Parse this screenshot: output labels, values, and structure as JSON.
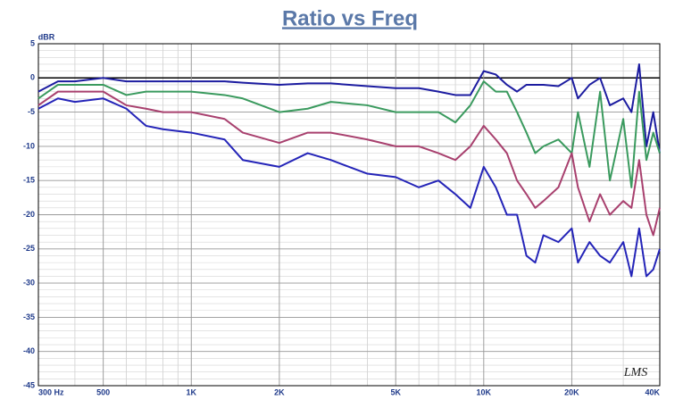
{
  "chart_data": {
    "type": "line",
    "title": "Ratio vs Freq",
    "y_label": "dBR",
    "logo": "LMS",
    "xscale": "log",
    "grid": true,
    "x": [
      300,
      350,
      400,
      500,
      600,
      700,
      800,
      1000,
      1300,
      1500,
      2000,
      2500,
      3000,
      4000,
      5000,
      6000,
      7000,
      8000,
      9000,
      10000,
      11000,
      12000,
      13000,
      14000,
      15000,
      16000,
      18000,
      20000,
      21000,
      23000,
      25000,
      27000,
      30000,
      32000,
      34000,
      36000,
      38000,
      40000
    ],
    "series": [
      {
        "color": "#1c1ca0",
        "values": [
          -2,
          -0.5,
          -0.5,
          0,
          -0.5,
          -0.5,
          -0.5,
          -0.5,
          -0.5,
          -0.7,
          -1,
          -0.8,
          -0.8,
          -1.2,
          -1.5,
          -1.5,
          -2,
          -2.5,
          -2.5,
          1,
          0.5,
          -1,
          -2,
          -1,
          -1,
          -1,
          -1.2,
          0,
          -3,
          -1,
          0,
          -4,
          -3,
          -5,
          2,
          -10,
          -5,
          -11
        ]
      },
      {
        "color": "#3a9a5e",
        "values": [
          -3,
          -1,
          -1,
          -1,
          -2.5,
          -2,
          -2,
          -2,
          -2.5,
          -3,
          -5,
          -4.5,
          -3.5,
          -4,
          -5,
          -5,
          -5,
          -6.5,
          -4,
          -0.5,
          -2,
          -2,
          -5,
          -8,
          -11,
          -10,
          -9,
          -11,
          -5,
          -13,
          -2,
          -15,
          -6,
          -16,
          -2,
          -12,
          -8,
          -11
        ]
      },
      {
        "color": "#a8406e",
        "values": [
          -4,
          -2,
          -2,
          -2,
          -4,
          -4.5,
          -5,
          -5,
          -6,
          -8,
          -9.5,
          -8,
          -8,
          -9,
          -10,
          -10,
          -11,
          -12,
          -10,
          -7,
          -9,
          -11,
          -15,
          -17,
          -19,
          -18,
          -16,
          -11,
          -16,
          -21,
          -17,
          -20,
          -18,
          -19,
          -12,
          -20,
          -23,
          -19
        ]
      },
      {
        "color": "#2424b8",
        "values": [
          -4.5,
          -3,
          -3.5,
          -3,
          -4.5,
          -7,
          -7.5,
          -8,
          -9,
          -12,
          -13,
          -11,
          -12,
          -14,
          -14.5,
          -16,
          -15,
          -17,
          -19,
          -13,
          -16,
          -20,
          -20,
          -26,
          -27,
          -23,
          -24,
          -22,
          -27,
          -24,
          -26,
          -27,
          -24,
          -29,
          -22,
          -29,
          -28,
          -25
        ]
      }
    ],
    "xlim": [
      300,
      40000
    ],
    "xticks": [
      {
        "value": 300,
        "label": "300  Hz"
      },
      500,
      {
        "value": 1000,
        "label": "1K"
      },
      {
        "value": 2000,
        "label": "2K"
      },
      {
        "value": 5000,
        "label": "5K"
      },
      {
        "value": 10000,
        "label": "10K"
      },
      {
        "value": 20000,
        "label": "20K"
      },
      {
        "value": 40000,
        "label": "40K"
      }
    ],
    "ylim": [
      -45,
      5
    ],
    "yticks": [
      5,
      0,
      -5,
      -10,
      -15,
      -20,
      -25,
      -30,
      -35,
      -40,
      -45
    ]
  }
}
